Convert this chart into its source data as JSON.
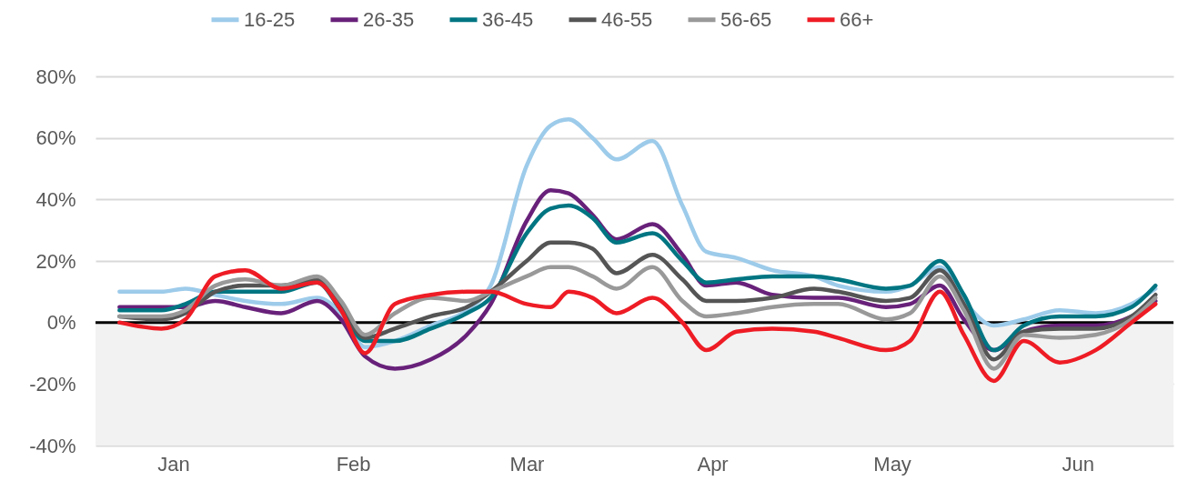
{
  "chart_data": {
    "type": "line",
    "x": [
      "--01-07",
      "--01-14",
      "--01-18",
      "--01-23",
      "--01-28",
      "--02-03",
      "--02-09",
      "--02-13",
      "--02-17",
      "--02-22",
      "--02-28",
      "--03-06",
      "--03-10",
      "--03-16",
      "--03-20",
      "--03-23",
      "--03-27",
      "--03-31",
      "--04-06",
      "--04-11",
      "--04-15",
      "--04-20",
      "--04-26",
      "--05-03",
      "--05-07",
      "--05-15",
      "--05-19",
      "--05-24",
      "--05-28",
      "--06-02",
      "--06-07",
      "--06-13",
      "--06-19",
      "--06-25",
      "--06-29"
    ],
    "series": [
      {
        "name": "16-25",
        "color": "#9dcbea",
        "values": [
          10,
          10,
          11,
          9,
          7,
          6,
          8,
          3,
          -8,
          -6,
          -1,
          4,
          12,
          51,
          64,
          66,
          60,
          53,
          59,
          38,
          23,
          21,
          17,
          15,
          12,
          10,
          12,
          18,
          7,
          -1,
          1,
          4,
          3,
          6,
          11
        ]
      },
      {
        "name": "26-35",
        "color": "#68217a",
        "values": [
          5,
          5,
          5,
          7,
          5,
          3,
          7,
          1,
          -11,
          -15,
          -12,
          -4,
          6,
          33,
          43,
          42,
          35,
          27,
          32,
          22,
          12,
          13,
          9,
          8,
          8,
          5,
          6,
          12,
          1,
          -9,
          -3,
          -1,
          -1,
          2,
          7
        ]
      },
      {
        "name": "36-45",
        "color": "#007582",
        "values": [
          4,
          4,
          6,
          10,
          10,
          10,
          13,
          4,
          -6,
          -6,
          -2,
          3,
          8,
          29,
          37,
          38,
          34,
          26,
          29,
          20,
          13,
          14,
          15,
          15,
          14,
          11,
          12,
          20,
          9,
          -9,
          -1,
          2,
          2,
          5,
          12
        ]
      },
      {
        "name": "46-55",
        "color": "#555555",
        "values": [
          2,
          1,
          3,
          10,
          12,
          12,
          14,
          5,
          -5,
          -2,
          2,
          5,
          10,
          20,
          26,
          26,
          24,
          16,
          22,
          14,
          7,
          7,
          8,
          11,
          10,
          7,
          8,
          17,
          6,
          -12,
          -3,
          -2,
          -2,
          2,
          9
        ]
      },
      {
        "name": "56-65",
        "color": "#999999",
        "values": [
          2,
          2,
          4,
          12,
          14,
          12,
          15,
          7,
          -4,
          3,
          8,
          7,
          10,
          15,
          18,
          18,
          15,
          11,
          18,
          7,
          2,
          3,
          5,
          6,
          6,
          1,
          3,
          15,
          4,
          -15,
          -4,
          -5,
          -4,
          1,
          8
        ]
      },
      {
        "name": "66+",
        "color": "#ee1c25",
        "values": [
          0,
          -2,
          1,
          15,
          17,
          11,
          13,
          4,
          -10,
          6,
          9,
          10,
          10,
          6,
          5,
          10,
          8,
          3,
          8,
          0,
          -9,
          -3,
          -2,
          -3,
          -5,
          -9,
          -6,
          10,
          -4,
          -19,
          -6,
          -13,
          -9,
          0,
          6
        ]
      }
    ],
    "xlim": [
      "--01-03",
      "--07-02"
    ],
    "xticks": [
      {
        "value": "--01-16",
        "label": "Jan"
      },
      {
        "value": "--02-15",
        "label": "Feb"
      },
      {
        "value": "--03-16",
        "label": "Mar"
      },
      {
        "value": "--04-16",
        "label": "Apr"
      },
      {
        "value": "--05-16",
        "label": "May"
      },
      {
        "value": "--06-16",
        "label": "Jun"
      }
    ],
    "ylim": [
      -40,
      80
    ],
    "yticks": [
      {
        "value": -40,
        "label": "-40%"
      },
      {
        "value": -20,
        "label": "-20%"
      },
      {
        "value": 0,
        "label": "0%"
      },
      {
        "value": 20,
        "label": "20%"
      },
      {
        "value": 40,
        "label": "40%"
      },
      {
        "value": 60,
        "label": "60%"
      },
      {
        "value": 80,
        "label": "80%"
      }
    ],
    "ref_lines": [
      {
        "axis": "y",
        "value": 0,
        "color": "#000000"
      }
    ],
    "bands": [
      {
        "axis": "y",
        "from": -40,
        "to": 0,
        "color": "#f2f2f2"
      }
    ],
    "grid": "y",
    "legend": "top",
    "marker": "none",
    "line_style": "solid"
  }
}
